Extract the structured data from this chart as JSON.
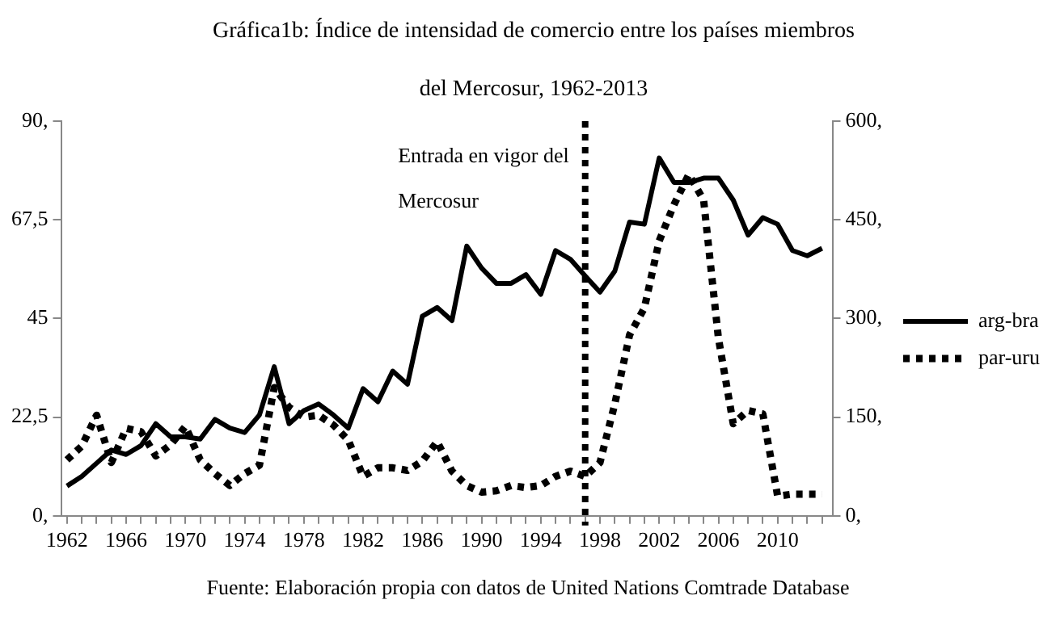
{
  "chart_data": {
    "type": "line",
    "title": "Gráfica1b: Índice de intensidad de comercio entre los países miembros del Mercosur, 1962-2013",
    "x": [
      1962,
      1963,
      1964,
      1965,
      1966,
      1967,
      1968,
      1969,
      1970,
      1971,
      1972,
      1973,
      1974,
      1975,
      1976,
      1977,
      1978,
      1979,
      1980,
      1981,
      1982,
      1983,
      1984,
      1985,
      1986,
      1987,
      1988,
      1989,
      1990,
      1991,
      1992,
      1993,
      1994,
      1995,
      1996,
      1997,
      1998,
      1999,
      2000,
      2001,
      2002,
      2003,
      2004,
      2005,
      2006,
      2007,
      2008,
      2009,
      2010,
      2011,
      2012,
      2013
    ],
    "series": [
      {
        "name": "arg-bra",
        "color": "#000000",
        "line_style": "solid",
        "values": [
          6.8,
          9,
          12,
          15,
          14,
          16,
          21,
          18,
          18,
          17.5,
          22,
          20,
          19,
          23,
          34,
          21,
          24,
          25.5,
          23,
          20,
          29,
          26,
          33,
          30,
          45.5,
          47.5,
          44.5,
          61.5,
          56.5,
          53,
          53,
          55,
          50.5,
          60.5,
          58.5,
          54.7,
          51,
          55.8,
          67,
          66.5,
          81.6,
          76,
          76,
          77,
          77,
          72,
          64,
          68,
          66.5,
          60.5,
          59.3,
          61
        ]
      },
      {
        "name": "par-uru",
        "color": "#000000",
        "line_style": "dotted",
        "axis": "y2",
        "values": [
          85,
          106,
          153,
          81,
          133,
          128,
          91,
          108,
          136,
          85,
          64,
          46,
          64,
          77,
          195,
          165,
          150,
          153,
          138,
          115,
          60,
          73,
          73,
          69,
          83,
          113,
          68,
          46,
          36,
          38,
          46,
          43,
          46,
          60,
          68,
          60,
          81,
          170,
          275,
          316,
          418,
          473,
          519,
          480,
          270,
          140,
          160,
          155,
          30,
          33,
          33,
          33
        ]
      }
    ],
    "xlim": [
      1961.6,
      2013.7
    ],
    "xticks": [
      1962,
      {
        "value": 1963,
        "label": null
      },
      {
        "value": 1964,
        "label": null
      },
      {
        "value": 1965,
        "label": null
      },
      1966,
      {
        "value": 1967,
        "label": null
      },
      {
        "value": 1968,
        "label": null
      },
      {
        "value": 1969,
        "label": null
      },
      1970,
      {
        "value": 1971,
        "label": null
      },
      {
        "value": 1972,
        "label": null
      },
      {
        "value": 1973,
        "label": null
      },
      1974,
      {
        "value": 1975,
        "label": null
      },
      {
        "value": 1976,
        "label": null
      },
      {
        "value": 1977,
        "label": null
      },
      1978,
      {
        "value": 1979,
        "label": null
      },
      {
        "value": 1980,
        "label": null
      },
      {
        "value": 1981,
        "label": null
      },
      1982,
      {
        "value": 1983,
        "label": null
      },
      {
        "value": 1984,
        "label": null
      },
      {
        "value": 1985,
        "label": null
      },
      1986,
      {
        "value": 1987,
        "label": null
      },
      {
        "value": 1988,
        "label": null
      },
      {
        "value": 1989,
        "label": null
      },
      1990,
      {
        "value": 1991,
        "label": null
      },
      {
        "value": 1992,
        "label": null
      },
      {
        "value": 1993,
        "label": null
      },
      1994,
      {
        "value": 1995,
        "label": null
      },
      {
        "value": 1996,
        "label": null
      },
      {
        "value": 1997,
        "label": null
      },
      1998,
      {
        "value": 1999,
        "label": null
      },
      {
        "value": 2000,
        "label": null
      },
      {
        "value": 2001,
        "label": null
      },
      2002,
      {
        "value": 2003,
        "label": null
      },
      {
        "value": 2004,
        "label": null
      },
      {
        "value": 2005,
        "label": null
      },
      2006,
      {
        "value": 2007,
        "label": null
      },
      {
        "value": 2008,
        "label": null
      },
      {
        "value": 2009,
        "label": null
      },
      2010,
      {
        "value": 2011,
        "label": null
      },
      {
        "value": 2012,
        "label": null
      },
      {
        "value": 2013,
        "label": null
      }
    ],
    "ylim": [
      0,
      90
    ],
    "yticks": [
      {
        "value": 0,
        "label": "0,"
      },
      {
        "value": 22.5,
        "label": "22,5"
      },
      45,
      {
        "value": 67.5,
        "label": "67,5"
      },
      {
        "value": 90,
        "label": "90,"
      }
    ],
    "y2lim": [
      0,
      600
    ],
    "y2ticks": [
      {
        "value": 0,
        "label": "0,"
      },
      {
        "value": 150,
        "label": "150,"
      },
      {
        "value": 300,
        "label": "300,"
      },
      {
        "value": 450,
        "label": "450,"
      },
      {
        "value": 600,
        "label": "600,"
      }
    ],
    "ref_lines": [
      {
        "axis": "x",
        "value": 1997,
        "label": "Entrada en vigor del Mercosur",
        "color": "#000000",
        "line_style": "dotted"
      }
    ],
    "annotations": [
      "Fuente: Elaboración propia con datos de United Nations Comtrade Database"
    ],
    "legend": "right",
    "grid": false,
    "marker": "none"
  }
}
